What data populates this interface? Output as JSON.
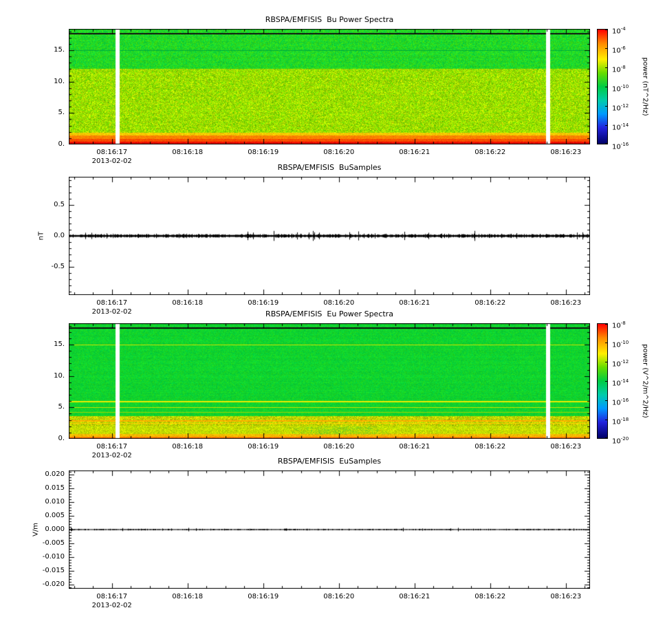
{
  "x_axis": {
    "date_label": "2013-02-02",
    "tick_labels": [
      "08:16:17",
      "08:16:18",
      "08:16:19",
      "08:16:20",
      "08:16:21",
      "08:16:22",
      "08:16:23"
    ],
    "tick_seconds": [
      17,
      18,
      19,
      20,
      21,
      22,
      23
    ],
    "t_start": 16.43,
    "t_end": 23.32,
    "minor_step": 0.25
  },
  "chart_data": [
    {
      "type": "heatmap",
      "title": "RBSPA/EMFISIS  Bu Power Spectra",
      "ylim": [
        0,
        18.4
      ],
      "ymajor_step": 5,
      "yminor": 1,
      "yticks": [
        {
          "v": 15,
          "label": "15."
        },
        {
          "v": 10,
          "label": "10."
        },
        {
          "v": 5,
          "label": "5."
        },
        {
          "v": 0,
          "label": "0."
        }
      ],
      "colorbar": {
        "label": "power (nT^2/Hz)",
        "base": 10,
        "tick_exponents": [
          -4,
          -6,
          -8,
          -10,
          -12,
          -14,
          -16
        ],
        "gradient": [
          "#ff0000 0%",
          "#ff8800 12%",
          "#ffee00 26%",
          "#66dd00 38%",
          "#00cc44 50%",
          "#00ccaa 62%",
          "#0099ff 74%",
          "#2222dd 86%",
          "#000066 100%"
        ]
      },
      "bands": [
        {
          "f0": 12.0,
          "f1": 18.4,
          "c0": [
            0,
            208,
            70
          ],
          "c1": [
            70,
            224,
            10
          ],
          "jitter": 0.1
        },
        {
          "f0": 1.9,
          "f1": 12.0,
          "c0": [
            96,
            214,
            0
          ],
          "c1": [
            214,
            232,
            0
          ],
          "jitter": 0.18
        },
        {
          "f0": 1.4,
          "f1": 1.9,
          "c0": [
            235,
            218,
            0
          ],
          "c1": [
            255,
            180,
            0
          ],
          "jitter": 0.1
        },
        {
          "f0": 0.9,
          "f1": 1.4,
          "c0": [
            255,
            150,
            0
          ],
          "c1": [
            255,
            112,
            0
          ],
          "jitter": 0.08
        },
        {
          "f0": 0.45,
          "f1": 0.9,
          "c0": [
            255,
            96,
            0
          ],
          "c1": [
            255,
            58,
            0
          ],
          "jitter": 0.08
        },
        {
          "f0": 0.0,
          "f1": 0.45,
          "c0": [
            255,
            30,
            0
          ],
          "c1": [
            225,
            0,
            0
          ],
          "jitter": 0.08
        }
      ],
      "hlines": [
        {
          "f": 17.75,
          "rgb": [
            15,
            15,
            15
          ],
          "w": 2
        },
        {
          "f": 15.0,
          "rgb": [
            0,
            170,
            60
          ],
          "w": 1
        }
      ],
      "patches": [],
      "gaps": [
        {
          "t0": 17.05,
          "t1": 17.105
        },
        {
          "t0": 22.74,
          "t1": 22.795
        }
      ],
      "seed": 11
    },
    {
      "type": "line",
      "title": "RBSPA/EMFISIS  BuSamples",
      "ylabel": "nT",
      "ylim": [
        -0.95,
        0.95
      ],
      "ymajor_step": 0.5,
      "yminor": 0.1,
      "yticks": [
        {
          "v": 0.5,
          "label": "0.5"
        },
        {
          "v": 0.0,
          "label": "0.0"
        },
        {
          "v": -0.5,
          "label": "-0.5"
        }
      ],
      "noise": {
        "base": 0.013,
        "var": 0.025,
        "spike_prob": 0.04,
        "spike": 0.06
      },
      "seed": 22
    },
    {
      "type": "heatmap",
      "title": "RBSPA/EMFISIS  Eu Power Spectra",
      "ylim": [
        0,
        18.4
      ],
      "ymajor_step": 5,
      "yminor": 1,
      "yticks": [
        {
          "v": 15,
          "label": "15."
        },
        {
          "v": 10,
          "label": "10."
        },
        {
          "v": 5,
          "label": "5."
        },
        {
          "v": 0,
          "label": "0."
        }
      ],
      "colorbar": {
        "label": "power (V^2/m^2/Hz)",
        "base": 10,
        "tick_exponents": [
          -8,
          -10,
          -12,
          -14,
          -16,
          -18,
          -20
        ],
        "gradient": [
          "#ff0000 0%",
          "#ff8800 12%",
          "#ffee00 26%",
          "#66dd00 38%",
          "#00cc44 50%",
          "#00ccaa 62%",
          "#0099ff 74%",
          "#2222dd 86%",
          "#000066 100%"
        ]
      },
      "bands": [
        {
          "f0": 3.6,
          "f1": 18.4,
          "c0": [
            0,
            206,
            64
          ],
          "c1": [
            34,
            218,
            30
          ],
          "jitter": 0.07
        },
        {
          "f0": 2.1,
          "f1": 3.6,
          "c0": [
            150,
            218,
            0
          ],
          "c1": [
            240,
            205,
            0
          ],
          "jitter": 0.22
        },
        {
          "f0": 0.75,
          "f1": 2.1,
          "c0": [
            222,
            222,
            0
          ],
          "c1": [
            170,
            216,
            0
          ],
          "jitter": 0.15
        },
        {
          "f0": 0.2,
          "f1": 0.75,
          "c0": [
            248,
            205,
            0
          ],
          "c1": [
            255,
            170,
            0
          ],
          "jitter": 0.12
        },
        {
          "f0": 0.0,
          "f1": 0.2,
          "c0": [
            255,
            130,
            0
          ],
          "c1": [
            255,
            95,
            0
          ],
          "jitter": 0.1
        }
      ],
      "hlines": [
        {
          "f": 17.75,
          "rgb": [
            15,
            15,
            15
          ],
          "w": 2
        },
        {
          "f": 15.0,
          "rgb": [
            205,
            228,
            0
          ],
          "w": 1
        },
        {
          "f": 6.0,
          "rgb": [
            235,
            235,
            0
          ],
          "w": 2
        },
        {
          "f": 5.0,
          "rgb": [
            205,
            228,
            0
          ],
          "w": 1
        },
        {
          "f": 4.3,
          "rgb": [
            160,
            215,
            0
          ],
          "w": 1
        },
        {
          "f": 2.95,
          "rgb": [
            255,
            175,
            0
          ],
          "w": 2
        },
        {
          "f": 2.5,
          "rgb": [
            255,
            205,
            0
          ],
          "w": 1
        },
        {
          "f": 0.35,
          "rgb": [
            255,
            140,
            0
          ],
          "w": 1
        }
      ],
      "patches": [
        {
          "t0": 19.3,
          "t1": 20.7,
          "f0": 0.7,
          "f1": 2.0,
          "rgb": [
            70,
            200,
            45
          ],
          "density": 0.5
        }
      ],
      "gaps": [
        {
          "t0": 17.05,
          "t1": 17.105
        },
        {
          "t0": 22.74,
          "t1": 22.795
        }
      ],
      "seed": 33
    },
    {
      "type": "line",
      "title": "RBSPA/EMFISIS  EuSamples",
      "ylabel": "V/m",
      "ylim": [
        -0.0215,
        0.0215
      ],
      "ymajor_step": 0.005,
      "yminor": 0.001,
      "yticks": [
        {
          "v": 0.02,
          "label": "0.020"
        },
        {
          "v": 0.015,
          "label": "0.015"
        },
        {
          "v": 0.01,
          "label": "0.010"
        },
        {
          "v": 0.005,
          "label": "0.005"
        },
        {
          "v": 0.0,
          "label": "0.000"
        },
        {
          "v": -0.005,
          "label": "-0.005"
        },
        {
          "v": -0.01,
          "label": "-0.010"
        },
        {
          "v": -0.015,
          "label": "-0.015"
        },
        {
          "v": -0.02,
          "label": "-0.020"
        }
      ],
      "noise": {
        "base": 0.00012,
        "var": 0.00022,
        "spike_prob": 0.02,
        "spike": 0.0005
      },
      "seed": 44
    }
  ]
}
